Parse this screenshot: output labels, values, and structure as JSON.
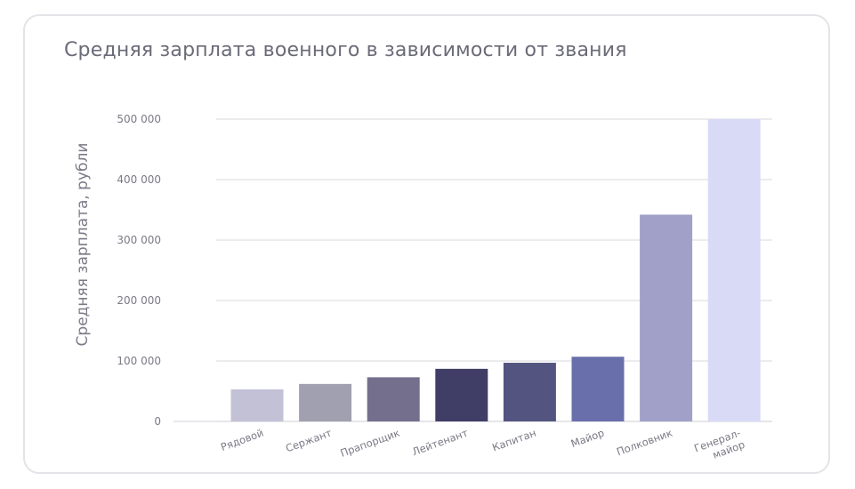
{
  "chart_data": {
    "type": "bar",
    "title": "Средняя зарплата военного в зависимости от звания",
    "xlabel": "",
    "ylabel": "Средняя зарплата, рубли",
    "categories": [
      "Рядовой",
      "Сержант",
      "Прапорщик",
      "Лейтенант",
      "Капитан",
      "Майор",
      "Полковник",
      "Генерал-майор"
    ],
    "category_lines": [
      [
        "Рядовой"
      ],
      [
        "Сержант"
      ],
      [
        "Прапорщик"
      ],
      [
        "Лейтенант"
      ],
      [
        "Капитан"
      ],
      [
        "Майор"
      ],
      [
        "Полковник"
      ],
      [
        "Генерал-",
        "майор"
      ]
    ],
    "values": [
      53000,
      62000,
      73000,
      87000,
      97000,
      107000,
      342000,
      500000
    ],
    "colors": [
      "#c3c1d6",
      "#a0a0b0",
      "#736f8d",
      "#403d66",
      "#545481",
      "#696fab",
      "#a0a0c8",
      "#d9dbf6"
    ],
    "ylim": [
      0,
      500000
    ],
    "yticks": [
      0,
      100000,
      200000,
      300000,
      400000,
      500000
    ],
    "ytick_labels": [
      "0",
      "100 000",
      "200 000",
      "300 000",
      "400 000",
      "500 000"
    ],
    "grid": true,
    "legend": "none"
  }
}
